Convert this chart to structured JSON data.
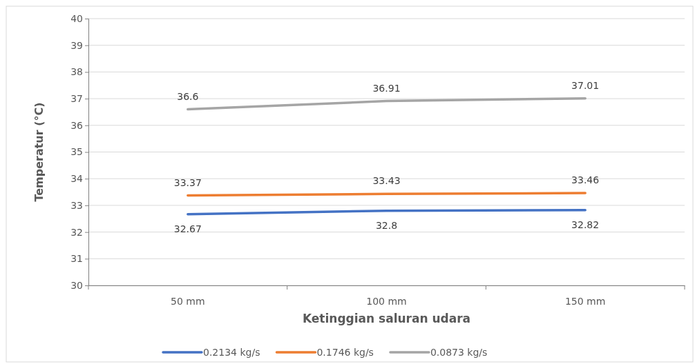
{
  "chart_data": {
    "type": "line",
    "xlabel": "Ketinggian saluran udara",
    "ylabel": "Temperatur (°C)",
    "categories": [
      "50 mm",
      "100 mm",
      "150 mm"
    ],
    "series": [
      {
        "name": "0.2134 kg/s",
        "color": "#4472c4",
        "values": [
          32.67,
          32.8,
          32.82
        ]
      },
      {
        "name": "0.1746 kg/s",
        "color": "#ed7d31",
        "values": [
          33.37,
          33.43,
          33.46
        ]
      },
      {
        "name": "0.0873 kg/s",
        "color": "#a5a5a5",
        "values": [
          36.6,
          36.91,
          37.01
        ]
      }
    ],
    "ylim": [
      30,
      40
    ],
    "yticks": [
      30,
      31,
      32,
      33,
      34,
      35,
      36,
      37,
      38,
      39,
      40
    ],
    "grid": "y",
    "legend": "bottom",
    "data_labels": true,
    "marker": "none",
    "line_style": "solid"
  }
}
